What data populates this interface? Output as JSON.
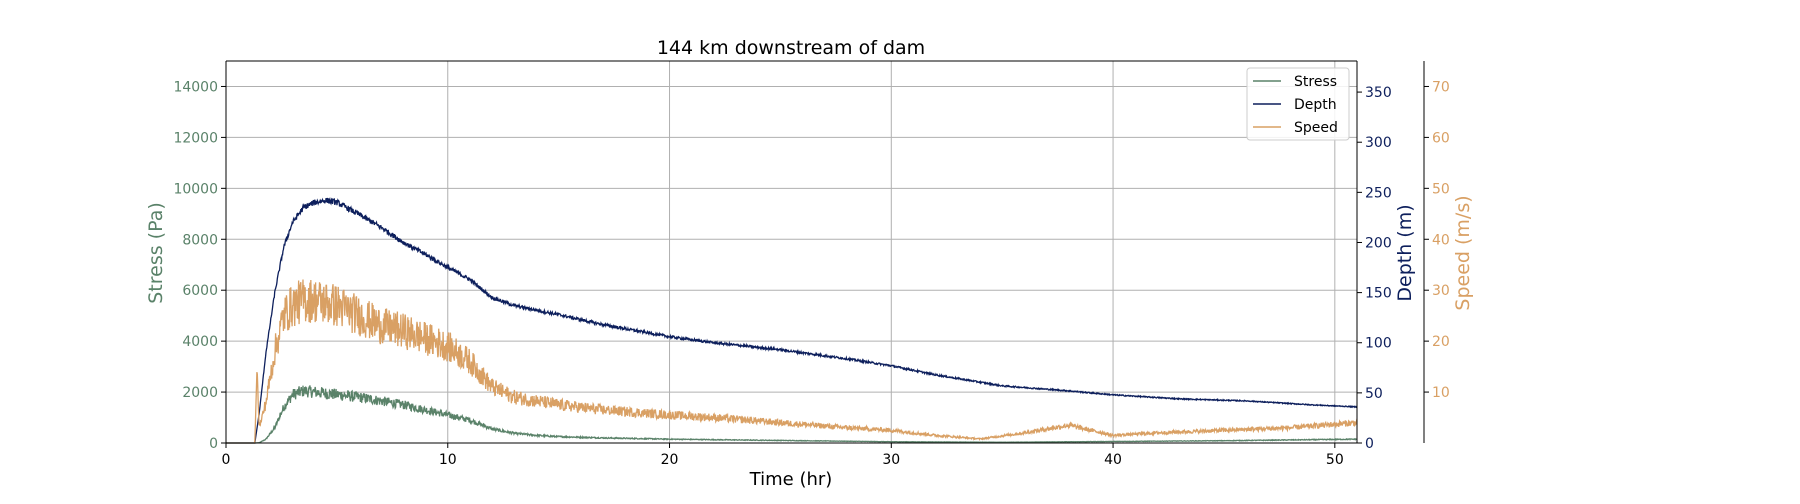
{
  "chart_data": {
    "type": "line",
    "title": "144 km downstream of dam",
    "xlabel": "Time (hr)",
    "xlim": [
      0,
      51
    ],
    "x_ticks": [
      0,
      10,
      20,
      30,
      40,
      50
    ],
    "grid": true,
    "legend_placement": "top-right",
    "axes": {
      "stress": {
        "label": "Stress (Pa)",
        "color": "#5a8269",
        "lim": [
          0,
          15000
        ],
        "ticks": [
          0,
          2000,
          4000,
          6000,
          8000,
          10000,
          12000,
          14000
        ]
      },
      "depth": {
        "label": "Depth (m)",
        "color": "#0d1f5c",
        "lim": [
          0,
          381
        ],
        "ticks": [
          0,
          50,
          100,
          150,
          200,
          250,
          300,
          350
        ]
      },
      "speed": {
        "label": "Speed (m/s)",
        "color": "#d9a064",
        "lim": [
          0,
          75
        ],
        "ticks": [
          10,
          20,
          30,
          40,
          50,
          60,
          70
        ]
      }
    },
    "series": [
      {
        "name": "Stress",
        "axis": "stress",
        "color": "#5a8269",
        "points": [
          [
            0,
            0
          ],
          [
            1.3,
            0
          ],
          [
            1.5,
            10
          ],
          [
            1.8,
            150
          ],
          [
            2.2,
            600
          ],
          [
            2.6,
            1400
          ],
          [
            3,
            1900
          ],
          [
            3.5,
            2050
          ],
          [
            4,
            2000
          ],
          [
            4.5,
            1950
          ],
          [
            5,
            1900
          ],
          [
            6,
            1800
          ],
          [
            7,
            1650
          ],
          [
            8,
            1500
          ],
          [
            9,
            1300
          ],
          [
            10,
            1100
          ],
          [
            11,
            900
          ],
          [
            12,
            550
          ],
          [
            13,
            380
          ],
          [
            14,
            300
          ],
          [
            15,
            250
          ],
          [
            17,
            200
          ],
          [
            20,
            150
          ],
          [
            25,
            100
          ],
          [
            30,
            50
          ],
          [
            35,
            30
          ],
          [
            40,
            60
          ],
          [
            45,
            90
          ],
          [
            51,
            150
          ]
        ]
      },
      {
        "name": "Depth",
        "axis": "depth",
        "color": "#0d1f5c",
        "points": [
          [
            0,
            0
          ],
          [
            1.3,
            0
          ],
          [
            1.5,
            30
          ],
          [
            1.8,
            90
          ],
          [
            2.2,
            150
          ],
          [
            2.6,
            195
          ],
          [
            3,
            220
          ],
          [
            3.5,
            235
          ],
          [
            4,
            240
          ],
          [
            4.5,
            242
          ],
          [
            5,
            240
          ],
          [
            6,
            228
          ],
          [
            7,
            215
          ],
          [
            8,
            200
          ],
          [
            9,
            188
          ],
          [
            10,
            175
          ],
          [
            11,
            163
          ],
          [
            12,
            145
          ],
          [
            13,
            137
          ],
          [
            15,
            128
          ],
          [
            17,
            118
          ],
          [
            20,
            106
          ],
          [
            22,
            100
          ],
          [
            25,
            93
          ],
          [
            28,
            84
          ],
          [
            30,
            77
          ],
          [
            32,
            68
          ],
          [
            35,
            57
          ],
          [
            38,
            52
          ],
          [
            40,
            48
          ],
          [
            43,
            44
          ],
          [
            46,
            42
          ],
          [
            49,
            38
          ],
          [
            51,
            36
          ]
        ]
      },
      {
        "name": "Speed",
        "axis": "speed",
        "color": "#d9a064",
        "points": [
          [
            0,
            0
          ],
          [
            1.3,
            0
          ],
          [
            1.4,
            15
          ],
          [
            1.5,
            3
          ],
          [
            1.8,
            8
          ],
          [
            2.2,
            18
          ],
          [
            2.6,
            25
          ],
          [
            3,
            27
          ],
          [
            3.5,
            28
          ],
          [
            4,
            28
          ],
          [
            4.5,
            27.5
          ],
          [
            5,
            27
          ],
          [
            6,
            25
          ],
          [
            7,
            23
          ],
          [
            8,
            22
          ],
          [
            9,
            20.5
          ],
          [
            10,
            19
          ],
          [
            11,
            16
          ],
          [
            12,
            11
          ],
          [
            13,
            9
          ],
          [
            15,
            7.5
          ],
          [
            17,
            6.5
          ],
          [
            20,
            5.5
          ],
          [
            22,
            5
          ],
          [
            25,
            4
          ],
          [
            28,
            3
          ],
          [
            30,
            2.5
          ],
          [
            32,
            1.5
          ],
          [
            34,
            0.8
          ],
          [
            36,
            2
          ],
          [
            38,
            3.5
          ],
          [
            40,
            1.5
          ],
          [
            42,
            2
          ],
          [
            45,
            2.5
          ],
          [
            48,
            3
          ],
          [
            51,
            4
          ]
        ]
      }
    ]
  }
}
